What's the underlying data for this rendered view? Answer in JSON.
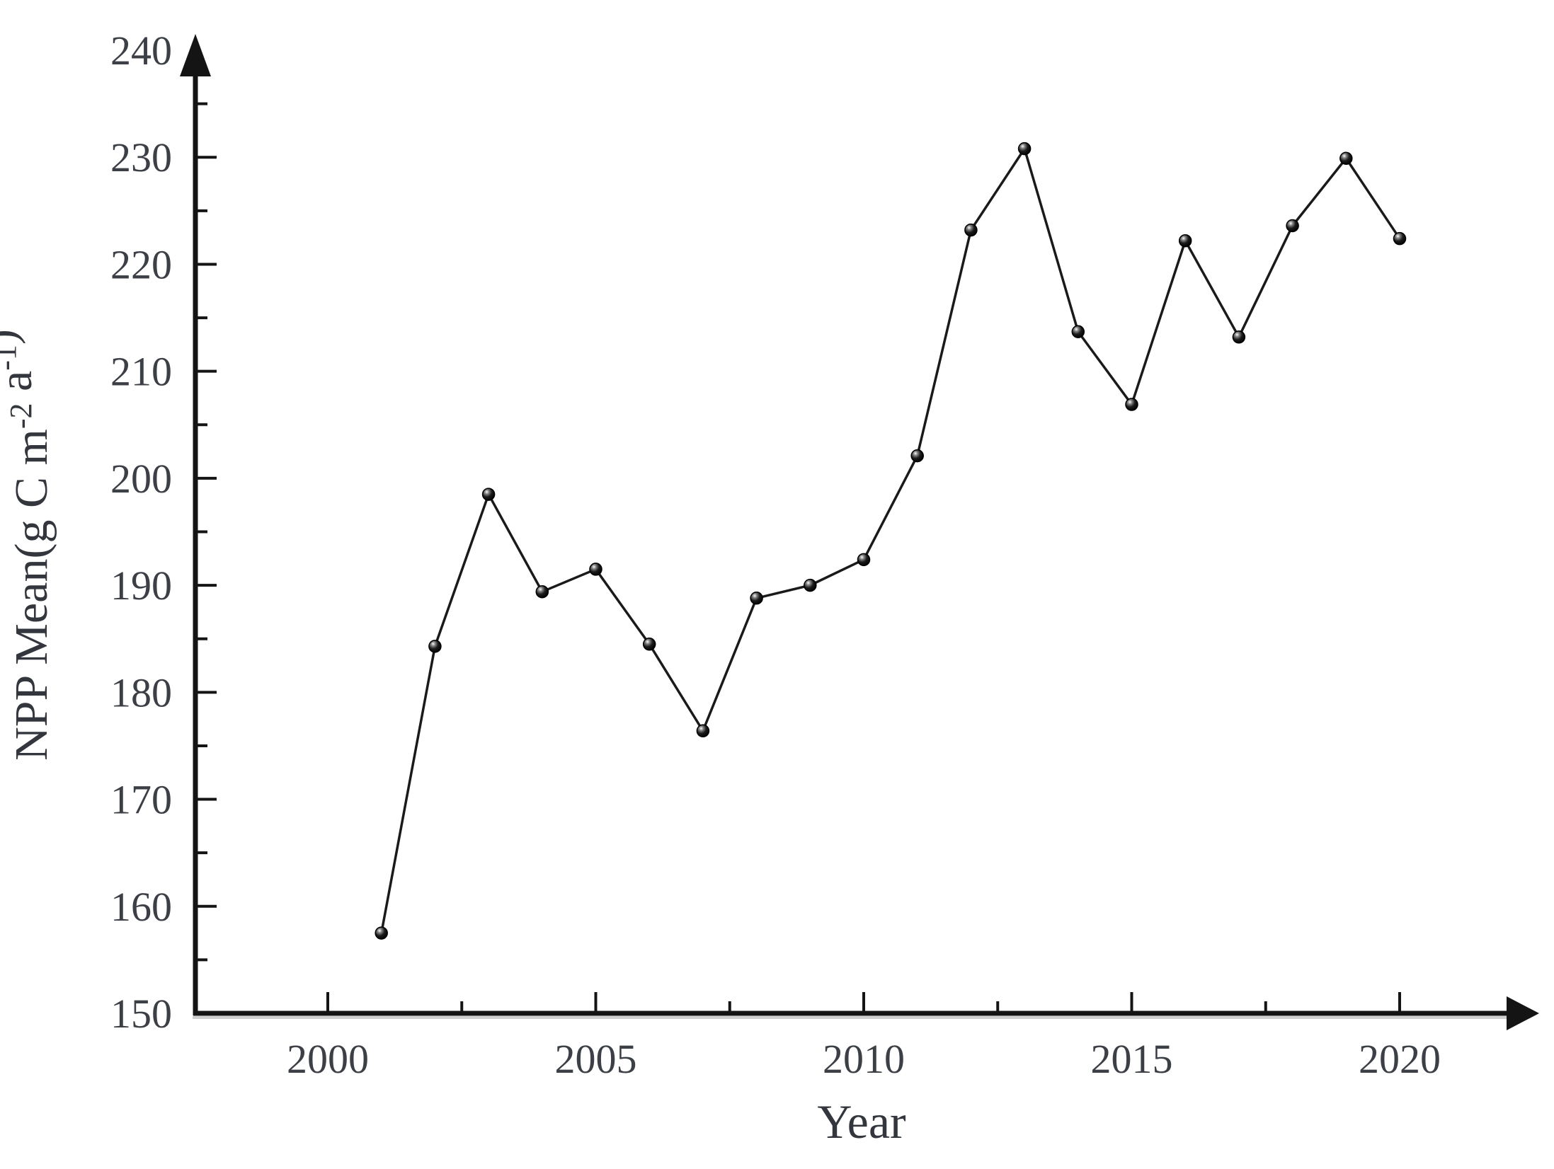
{
  "figure": {
    "background": "#ffffff",
    "description": "Line chart of annual NPP mean values from 2001 to 2020 with arrowed X and Y axes"
  },
  "chart_data": {
    "type": "line",
    "title": "",
    "xlabel": "Year",
    "ylabel": "NPP Mean(g C m-2 a-1)",
    "ylabel_parts": [
      {
        "t": "NPP Mean(g C m",
        "sup": false
      },
      {
        "t": "-2",
        "sup": true
      },
      {
        "t": " a",
        "sup": false
      },
      {
        "t": "-1",
        "sup": true
      },
      {
        "t": ")",
        "sup": false
      }
    ],
    "x": [
      2001,
      2002,
      2003,
      2004,
      2005,
      2006,
      2007,
      2008,
      2009,
      2010,
      2011,
      2012,
      2013,
      2014,
      2015,
      2016,
      2017,
      2018,
      2019,
      2020
    ],
    "series": [
      {
        "name": "NPP Mean",
        "values": [
          157.5,
          184.3,
          198.5,
          189.4,
          191.5,
          184.5,
          176.4,
          188.8,
          190.0,
          192.4,
          202.1,
          223.2,
          230.8,
          213.7,
          206.9,
          222.2,
          213.2,
          223.6,
          229.9,
          222.4
        ]
      }
    ],
    "xlim": [
      1997.5,
      2022.8
    ],
    "ylim": [
      150,
      240
    ],
    "x_major_ticks": [
      2000,
      2005,
      2010,
      2015,
      2020
    ],
    "x_minor_ticks": [
      2002.5,
      2007.5,
      2012.5,
      2017.5
    ],
    "y_major_tick_labels": [
      150,
      160,
      170,
      180,
      190,
      200,
      210,
      220,
      230,
      240
    ],
    "y_major_ticks": [
      160,
      170,
      180,
      190,
      200,
      210,
      220,
      230
    ],
    "y_minor_ticks": [
      155,
      165,
      175,
      185,
      195,
      205,
      215,
      225,
      235
    ],
    "grid": false,
    "legend": "none",
    "marker": "filled-ball-3d",
    "line_style": "solid",
    "colors": {
      "line": "#1a1a1a",
      "marker": "#0d0d0d",
      "axis": "#141414",
      "axis_shadow": "#a8a8a8",
      "tick_text": "#3c4046",
      "title_text": "#33373d"
    }
  }
}
